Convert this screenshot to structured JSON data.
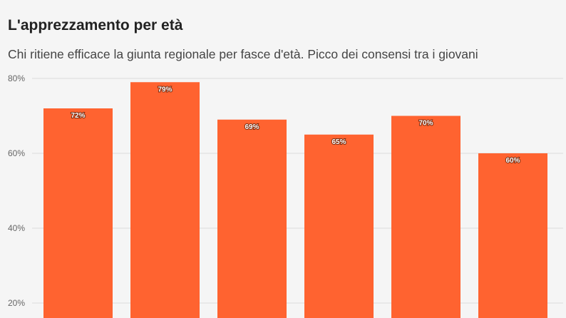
{
  "header": {
    "title": "L'apprezzamento per età",
    "subtitle": "Chi ritiene efficace la giunta regionale per fasce d'età. Picco dei consensi tra i giovani"
  },
  "chart_data": {
    "type": "bar",
    "categories": [
      "",
      "",
      "",
      "",
      "",
      ""
    ],
    "values": [
      72,
      79,
      69,
      65,
      70,
      60
    ],
    "value_labels": [
      "72%",
      "79%",
      "69%",
      "65%",
      "70%",
      "60%"
    ],
    "y_ticks": [
      20,
      40,
      60,
      80
    ],
    "y_tick_labels": [
      "20%",
      "40%",
      "60%",
      "80%"
    ],
    "ylim": [
      0,
      82
    ],
    "grid": true,
    "bar_color": "#ff6330",
    "grid_color": "#dcdcdc",
    "background": "#f5f5f5"
  }
}
